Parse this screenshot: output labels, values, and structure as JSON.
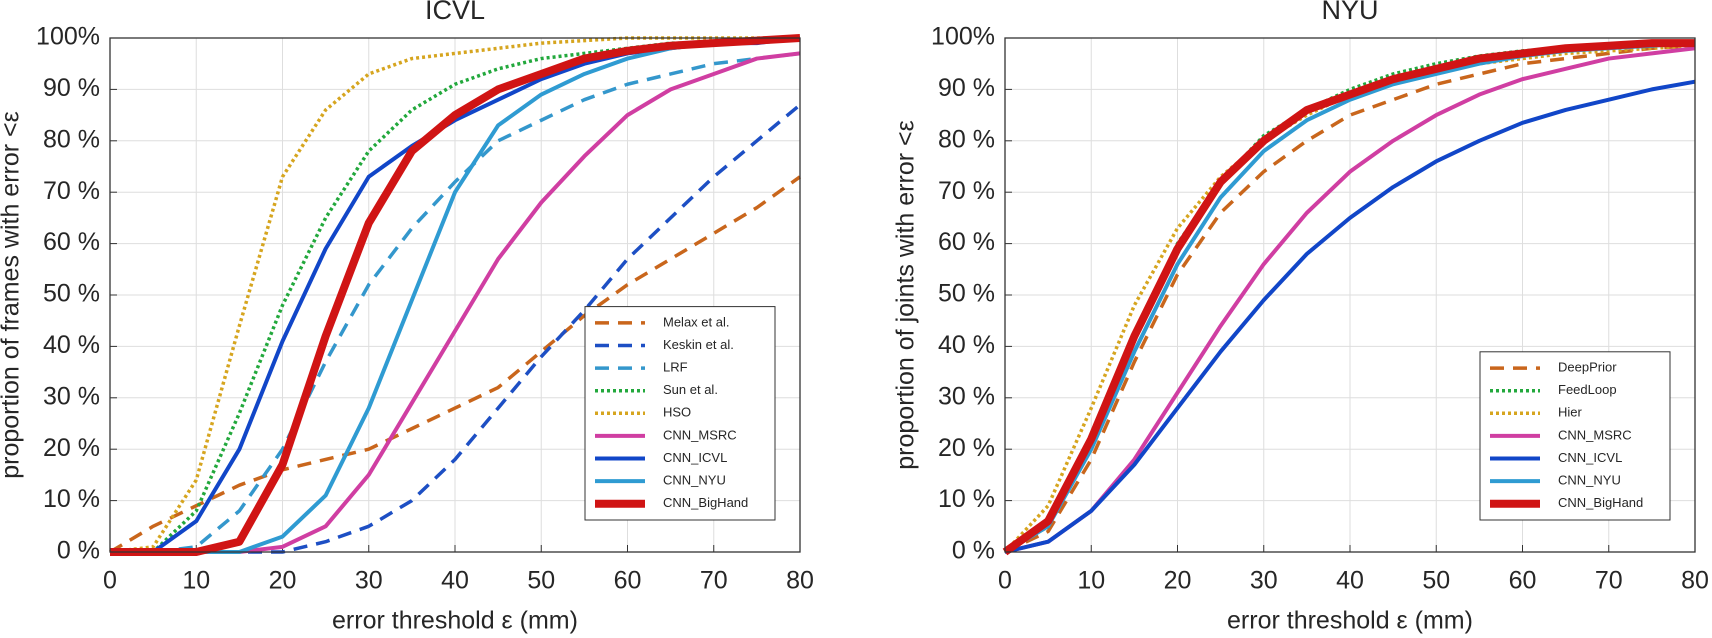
{
  "chart_data": [
    {
      "type": "line",
      "title": "ICVL",
      "xlabel": "error threshold ε (mm)",
      "ylabel": "proportion of frames with error <ε",
      "x": [
        0,
        5,
        10,
        15,
        20,
        25,
        30,
        35,
        40,
        45,
        50,
        55,
        60,
        65,
        70,
        75,
        80
      ],
      "xlim": [
        0,
        80
      ],
      "xticks": [
        0,
        10,
        20,
        30,
        40,
        50,
        60,
        70,
        80
      ],
      "ylim": [
        0,
        100
      ],
      "yticks": [
        {
          "value": 0,
          "label": "0 %"
        },
        {
          "value": 10,
          "label": "10 %"
        },
        {
          "value": 20,
          "label": "20 %"
        },
        {
          "value": 30,
          "label": "30 %"
        },
        {
          "value": 40,
          "label": "40 %"
        },
        {
          "value": 50,
          "label": "50 %"
        },
        {
          "value": 60,
          "label": "60 %"
        },
        {
          "value": 70,
          "label": "70 %"
        },
        {
          "value": 80,
          "label": "80 %"
        },
        {
          "value": 90,
          "label": "90 %"
        },
        {
          "value": 100,
          "label": "100%"
        }
      ],
      "grid": true,
      "legend": "lower right",
      "series": [
        {
          "name": "Melax et al.",
          "color": "#c9661c",
          "line_style": "dashed",
          "values": [
            0,
            5,
            9,
            13,
            16,
            18,
            20,
            24,
            28,
            32,
            39,
            46,
            52,
            57,
            62,
            67,
            73
          ]
        },
        {
          "name": "Keskin et al.",
          "color": "#1d4fc4",
          "line_style": "dashed",
          "values": [
            0,
            0,
            0,
            0,
            0,
            2,
            5,
            10,
            18,
            28,
            38,
            47,
            57,
            65,
            73,
            80,
            87
          ]
        },
        {
          "name": "LRF",
          "color": "#3497cc",
          "line_style": "dashed",
          "values": [
            0,
            0,
            1,
            8,
            20,
            37,
            52,
            63,
            72,
            80,
            84,
            88,
            91,
            93,
            95,
            96,
            97
          ]
        },
        {
          "name": "Sun et al.",
          "color": "#22a83c",
          "line_style": "dotted",
          "values": [
            0,
            0,
            8,
            27,
            48,
            65,
            78,
            86,
            91,
            94,
            96,
            97,
            98,
            99,
            99,
            99.5,
            100
          ]
        },
        {
          "name": "HSO",
          "color": "#d6a51f",
          "line_style": "dotted",
          "values": [
            0,
            1,
            14,
            44,
            73,
            86,
            93,
            96,
            97,
            98,
            99,
            99.5,
            100,
            100,
            100,
            100,
            100
          ]
        },
        {
          "name": "CNN_MSRC",
          "color": "#d03ea2",
          "line_style": "solid",
          "values": [
            0,
            0,
            0,
            0,
            1,
            5,
            15,
            29,
            43,
            57,
            68,
            77,
            85,
            90,
            93,
            96,
            97
          ]
        },
        {
          "name": "CNN_ICVL",
          "color": "#1146c8",
          "line_style": "solid",
          "values": [
            0,
            0,
            6,
            20,
            41,
            59,
            73,
            79,
            84,
            88,
            92,
            95,
            97,
            98,
            99,
            99,
            100
          ]
        },
        {
          "name": "CNN_NYU",
          "color": "#2f9bd2",
          "line_style": "solid",
          "values": [
            0,
            0,
            0,
            0,
            3,
            11,
            28,
            49,
            70,
            83,
            89,
            93,
            96,
            98,
            99,
            99.5,
            100
          ]
        },
        {
          "name": "CNN_BigHand",
          "color": "#d01414",
          "line_style": "bold",
          "values": [
            0,
            0,
            0,
            2,
            17,
            42,
            64,
            78,
            85,
            90,
            93,
            96,
            97.5,
            98.5,
            99,
            99.5,
            100
          ]
        }
      ]
    },
    {
      "type": "line",
      "title": "NYU",
      "xlabel": "error threshold ε (mm)",
      "ylabel": "proportion of joints with error <ε",
      "x": [
        0,
        5,
        10,
        15,
        20,
        25,
        30,
        35,
        40,
        45,
        50,
        55,
        60,
        65,
        70,
        75,
        80
      ],
      "xlim": [
        0,
        80
      ],
      "xticks": [
        0,
        10,
        20,
        30,
        40,
        50,
        60,
        70,
        80
      ],
      "ylim": [
        0,
        100
      ],
      "yticks": [
        {
          "value": 0,
          "label": "0 %"
        },
        {
          "value": 10,
          "label": "10 %"
        },
        {
          "value": 20,
          "label": "20 %"
        },
        {
          "value": 30,
          "label": "30 %"
        },
        {
          "value": 40,
          "label": "40 %"
        },
        {
          "value": 50,
          "label": "50 %"
        },
        {
          "value": 60,
          "label": "60 %"
        },
        {
          "value": 70,
          "label": "70 %"
        },
        {
          "value": 80,
          "label": "80 %"
        },
        {
          "value": 90,
          "label": "90 %"
        },
        {
          "value": 100,
          "label": "100%"
        }
      ],
      "grid": true,
      "legend": "lower right",
      "series": [
        {
          "name": "DeepPrior",
          "color": "#c9661c",
          "line_style": "dashed",
          "values": [
            0,
            4,
            18,
            37,
            54,
            66,
            74,
            80,
            85,
            88,
            91,
            93,
            95,
            96,
            97,
            98,
            98.5
          ]
        },
        {
          "name": "FeedLoop",
          "color": "#22a83c",
          "line_style": "dotted",
          "values": [
            0,
            5,
            21,
            42,
            60,
            72,
            81,
            86,
            90,
            93,
            95,
            96.5,
            97.5,
            98,
            98.5,
            99,
            99
          ]
        },
        {
          "name": "Hier",
          "color": "#d6a51f",
          "line_style": "dotted",
          "values": [
            0,
            9,
            28,
            48,
            63,
            73,
            80,
            85,
            89,
            91.5,
            93.5,
            95,
            96,
            97,
            97.5,
            98,
            98.5
          ]
        },
        {
          "name": "CNN_MSRC",
          "color": "#d03ea2",
          "line_style": "solid",
          "values": [
            0,
            2,
            8,
            18,
            31,
            44,
            56,
            66,
            74,
            80,
            85,
            89,
            92,
            94,
            96,
            97,
            98
          ]
        },
        {
          "name": "CNN_ICVL",
          "color": "#1146c8",
          "line_style": "solid",
          "values": [
            0,
            2,
            8,
            17,
            28,
            39,
            49,
            58,
            65,
            71,
            76,
            80,
            83.5,
            86,
            88,
            90,
            91.5
          ]
        },
        {
          "name": "CNN_NYU",
          "color": "#2f9bd2",
          "line_style": "solid",
          "values": [
            0,
            5,
            20,
            39,
            56,
            69,
            78,
            84,
            88,
            91,
            93,
            95,
            96.5,
            97.5,
            98,
            98.5,
            99
          ]
        },
        {
          "name": "CNN_BigHand",
          "color": "#d01414",
          "line_style": "bold",
          "values": [
            0,
            6,
            22,
            42,
            59,
            72,
            80,
            86,
            89,
            92,
            94,
            96,
            97,
            98,
            98.5,
            99,
            99
          ]
        }
      ]
    }
  ]
}
